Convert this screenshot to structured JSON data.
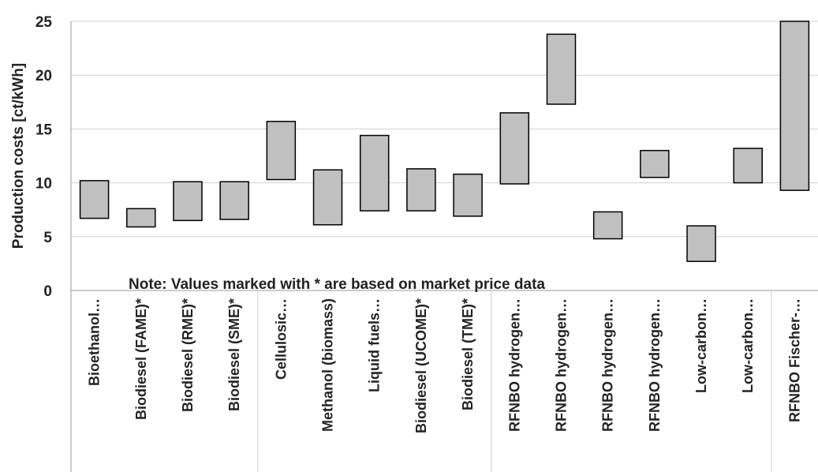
{
  "chart_data": {
    "type": "bar",
    "subtype": "floating-range",
    "ylabel": "Production costs [ct/kWh]",
    "ylim": [
      0,
      25
    ],
    "yticks": [
      "0",
      "5",
      "10",
      "15",
      "20",
      "25"
    ],
    "grid": "horizontal",
    "note": "Note: Values marked with * are based on market price data",
    "categories": [
      "Bioethanol…",
      "Biodiesel (FAME)*",
      "Biodiesel (RME)*",
      "Biodiesel (SME)*",
      "Cellulosic…",
      "Methanol (biomass)",
      "Liquid fuels…",
      "Biodiesel (UCOME)*",
      "Biodiesel (TME)*",
      "RFNBO hydrogen…",
      "RFNBO hydrogen…",
      "RFNBO hydrogen…",
      "RFNBO hydrogen…",
      "Low-carbon…",
      "Low-carbon…",
      "RFNBO Fischer-…"
    ],
    "ranges": [
      [
        6.7,
        10.2
      ],
      [
        5.9,
        7.6
      ],
      [
        6.5,
        10.1
      ],
      [
        6.6,
        10.1
      ],
      [
        10.3,
        15.7
      ],
      [
        6.1,
        11.2
      ],
      [
        7.4,
        14.4
      ],
      [
        7.4,
        11.3
      ],
      [
        6.9,
        10.8
      ],
      [
        9.9,
        16.5
      ],
      [
        17.3,
        23.8
      ],
      [
        4.8,
        7.3
      ],
      [
        10.5,
        13.0
      ],
      [
        2.7,
        6.0
      ],
      [
        10.0,
        13.2
      ],
      [
        9.3,
        25.0
      ]
    ],
    "group_boundaries_after": [
      3,
      8,
      14
    ],
    "colors": {
      "bar_fill": "#c0c0c0",
      "bar_stroke": "#000000",
      "grid": "#d0d0d0",
      "axis": "#9a9a9a"
    }
  }
}
